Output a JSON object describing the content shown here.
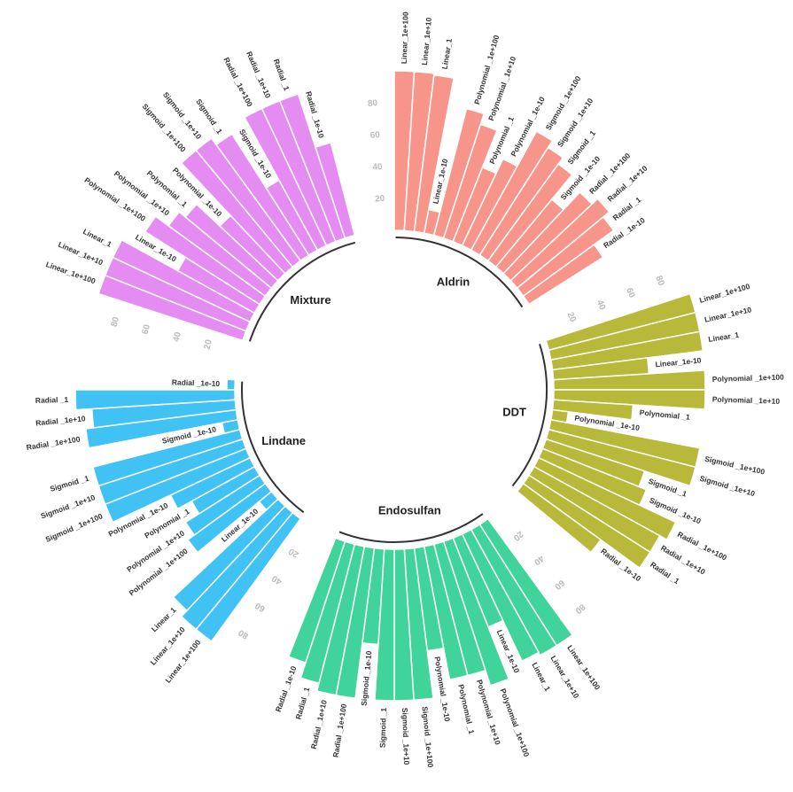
{
  "chart_data": {
    "type": "circular-bar",
    "categories": [
      "Linear_1e+100",
      "Linear_1e+10",
      "Linear_1",
      "Linear_1e-10",
      "Polynomial _1e+100",
      "Polynomial _1e+10",
      "Polynomial _1",
      "Polynomial _1e-10",
      "Sigmoid _1e+100",
      "Sigmoid _1e+10",
      "Sigmoid _1",
      "Sigmoid _1e-10",
      "Radial _1e+100",
      "Radial _1e+10",
      "Radial _1",
      "Radial _1e-10"
    ],
    "series": [
      {
        "name": "Aldrin",
        "color": "#f7958b",
        "values": [
          100,
          100,
          99,
          15,
          82,
          75,
          50,
          60,
          85,
          80,
          75,
          55,
          70,
          75,
          70,
          55
        ]
      },
      {
        "name": "DDT",
        "color": "#b8b93a",
        "values": [
          95,
          95,
          95,
          60,
          95,
          95,
          50,
          10,
          95,
          95,
          65,
          70,
          95,
          90,
          90,
          60
        ]
      },
      {
        "name": "Endosulfan",
        "color": "#40d39a",
        "values": [
          90,
          90,
          88,
          60,
          95,
          85,
          85,
          65,
          95,
          95,
          95,
          60,
          95,
          95,
          90,
          80
        ]
      },
      {
        "name": "Lindane",
        "color": "#40c2f5",
        "values": [
          95,
          95,
          90,
          10,
          60,
          55,
          45,
          55,
          95,
          95,
          95,
          10,
          95,
          90,
          100,
          5
        ]
      },
      {
        "name": "Mixture",
        "color": "#e58cf2",
        "values": [
          95,
          95,
          95,
          55,
          85,
          75,
          70,
          50,
          95,
          95,
          90,
          50,
          95,
          95,
          95,
          60
        ]
      }
    ],
    "ylim": [
      0,
      100
    ],
    "yticks": [
      20,
      40,
      60,
      80
    ]
  }
}
